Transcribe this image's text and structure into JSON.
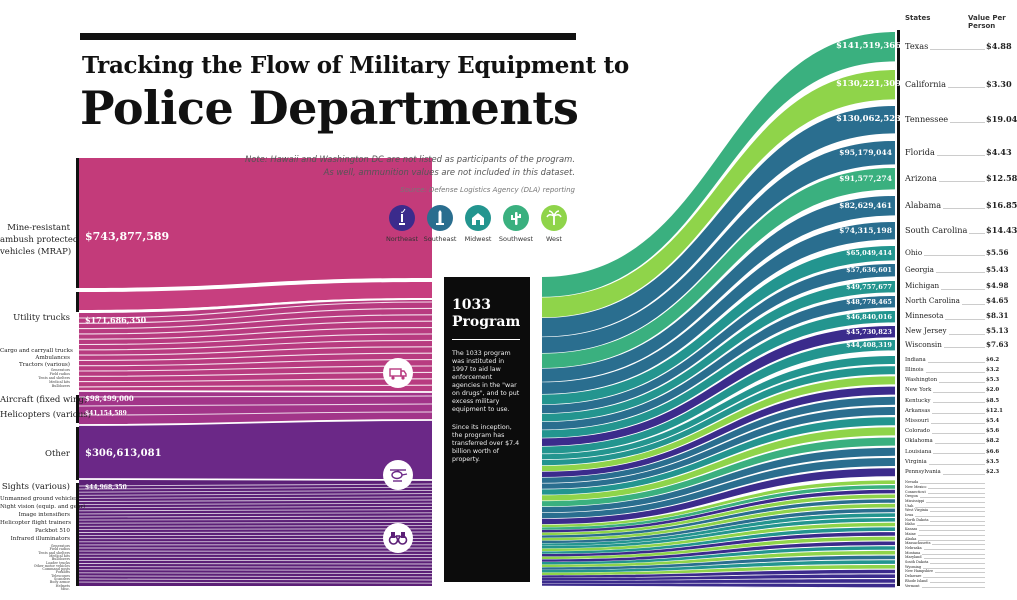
{
  "header": {
    "title_line1": "Tracking the Flow of Military Equipment to",
    "title_line2": "Police Departments",
    "note_line1": "Note: Hawaii and Washington DC are not listed as participants of the program.",
    "note_line2": "As well, ammunition values are not included in this dataset.",
    "source": "Source: Defense Logistics Agency (DLA) reporting"
  },
  "colors": {
    "mrap": "#c33b7a",
    "utility": "#c73f7f",
    "aircraft": "#a23589",
    "other": "#6b2887",
    "sights": "#5c2077",
    "Northeast": "#3b2b8c",
    "Southeast": "#2a6e8f",
    "Midwest": "#23958f",
    "Southwest": "#3ab07f",
    "West": "#8fd44a"
  },
  "legend": [
    {
      "name": "Northeast",
      "icon": "statue-of-liberty-icon"
    },
    {
      "name": "Southeast",
      "icon": "monument-icon"
    },
    {
      "name": "Midwest",
      "icon": "barn-icon"
    },
    {
      "name": "Southwest",
      "icon": "cactus-icon"
    },
    {
      "name": "West",
      "icon": "palm-tree-icon"
    }
  ],
  "program": {
    "title_line1": "1033",
    "title_line2": "Program",
    "para1": "The 1033 program was instituted in 1997 to aid law enforcement agencies in the \"war on drugs\", and to put excess military equipment to use.",
    "para2": "Since its inception, the program has transferred over $7.4 billion worth of property."
  },
  "categories": [
    {
      "label": "Mine-resistant ambush protected vehicles (MRAP)",
      "lines": [
        "Mine-resistant",
        "ambush protected",
        "vehicles (MRAP)"
      ],
      "value": "$743,877,589"
    },
    {
      "label": "Utility trucks",
      "value": "$171,686,350"
    },
    {
      "label": "Cargo and carryall trucks",
      "value": ""
    },
    {
      "label": "Ambulances",
      "value": ""
    },
    {
      "label": "Tractors (various)",
      "value": ""
    },
    {
      "label": "Aircraft (fixed wing)",
      "value": "$98,499,000"
    },
    {
      "label": "Helicopters (various)",
      "value": "$41,154,589"
    },
    {
      "label": "Other",
      "value": "$306,613,081"
    },
    {
      "label": "Sights (various)",
      "value": "$44,968,350"
    },
    {
      "label": "Unmanned ground vehicles",
      "value": ""
    },
    {
      "label": "Night vision (equip. and gear)",
      "value": ""
    },
    {
      "label": "Image intensifiers",
      "value": ""
    },
    {
      "label": "Helicopter flight trainers",
      "value": ""
    },
    {
      "label": "Packbot 510",
      "value": ""
    },
    {
      "label": "Infrared illuminators",
      "value": ""
    }
  ],
  "category_icons": [
    "truck-icon",
    "helicopter-icon",
    "binoculars-icon"
  ],
  "states_header": "States",
  "vpp_header": "Value Per Person",
  "states": [
    {
      "name": "Texas",
      "value": "$141,519,366",
      "vpp": "$4.88",
      "region": "Southwest"
    },
    {
      "name": "California",
      "value": "$130,221,309",
      "vpp": "$3.30",
      "region": "West"
    },
    {
      "name": "Tennessee",
      "value": "$130,062,523",
      "vpp": "$19.04",
      "region": "Southeast"
    },
    {
      "name": "Florida",
      "value": "$95,179,044",
      "vpp": "$4.43",
      "region": "Southeast"
    },
    {
      "name": "Arizona",
      "value": "$91,577,274",
      "vpp": "$12.58",
      "region": "Southwest"
    },
    {
      "name": "Alabama",
      "value": "$82,629,461",
      "vpp": "$16.85",
      "region": "Southeast"
    },
    {
      "name": "South Carolina",
      "value": "$74,315,198",
      "vpp": "$14.43",
      "region": "Southeast"
    },
    {
      "name": "Ohio",
      "value": "$65,049,414",
      "vpp": "$5.56",
      "region": "Midwest"
    },
    {
      "name": "Georgia",
      "value": "$57,636,601",
      "vpp": "$5.43",
      "region": "Southeast"
    },
    {
      "name": "Michigan",
      "value": "$49,757,677",
      "vpp": "$4.98",
      "region": "Midwest"
    },
    {
      "name": "North Carolina",
      "value": "$48,778,465",
      "vpp": "$4.65",
      "region": "Southeast"
    },
    {
      "name": "Minnesota",
      "value": "$46,840,016",
      "vpp": "$8.31",
      "region": "Midwest"
    },
    {
      "name": "New Jersey",
      "value": "$45,730,823",
      "vpp": "$5.13",
      "region": "Northeast"
    },
    {
      "name": "Wisconsin",
      "value": "$44,408,319",
      "vpp": "$7.63",
      "region": "Midwest"
    },
    {
      "name": "Indiana",
      "value": "",
      "vpp": "$6.2",
      "region": "Midwest"
    },
    {
      "name": "Illinois",
      "value": "",
      "vpp": "$3.2",
      "region": "Midwest"
    },
    {
      "name": "Washington",
      "value": "",
      "vpp": "$5.3",
      "region": "West"
    },
    {
      "name": "New York",
      "value": "",
      "vpp": "$2.0",
      "region": "Northeast"
    },
    {
      "name": "Kentucky",
      "value": "",
      "vpp": "$8.5",
      "region": "Southeast"
    },
    {
      "name": "Arkansas",
      "value": "",
      "vpp": "$12.1",
      "region": "Southeast"
    },
    {
      "name": "Missouri",
      "value": "",
      "vpp": "$5.4",
      "region": "Midwest"
    },
    {
      "name": "Colorado",
      "value": "",
      "vpp": "$5.6",
      "region": "West"
    },
    {
      "name": "Oklahoma",
      "value": "",
      "vpp": "$8.2",
      "region": "Southwest"
    },
    {
      "name": "Louisiana",
      "value": "",
      "vpp": "$6.6",
      "region": "Southeast"
    },
    {
      "name": "Virginia",
      "value": "",
      "vpp": "$3.5",
      "region": "Southeast"
    },
    {
      "name": "Pennsylvania",
      "value": "",
      "vpp": "$2.3",
      "region": "Northeast"
    }
  ],
  "small_states": [
    {
      "name": "Nevada",
      "region": "West"
    },
    {
      "name": "New Mexico",
      "region": "Southwest"
    },
    {
      "name": "Connecticut",
      "region": "Northeast"
    },
    {
      "name": "Oregon",
      "region": "West"
    },
    {
      "name": "Mississippi",
      "region": "Southeast"
    },
    {
      "name": "Utah",
      "region": "West"
    },
    {
      "name": "West Virginia",
      "region": "Southeast"
    },
    {
      "name": "Iowa",
      "region": "Midwest"
    },
    {
      "name": "North Dakota",
      "region": "Midwest"
    },
    {
      "name": "Idaho",
      "region": "West"
    },
    {
      "name": "Kansas",
      "region": "Midwest"
    },
    {
      "name": "Maine",
      "region": "Northeast"
    },
    {
      "name": "Alaska",
      "region": "West"
    },
    {
      "name": "Massachusetts",
      "region": "Northeast"
    },
    {
      "name": "Nebraska",
      "region": "Midwest"
    },
    {
      "name": "Montana",
      "region": "West"
    },
    {
      "name": "Maryland",
      "region": "Southeast"
    },
    {
      "name": "South Dakota",
      "region": "Midwest"
    },
    {
      "name": "Wyoming",
      "region": "West"
    },
    {
      "name": "New Hampshire",
      "region": "Northeast"
    },
    {
      "name": "Delaware",
      "region": "Northeast"
    },
    {
      "name": "Rhode Island",
      "region": "Northeast"
    },
    {
      "name": "Vermont",
      "region": "Northeast"
    }
  ],
  "small_categories": [
    "Generators",
    "Field radios",
    "Tents and shelters",
    "Medical kits",
    "Bulldozers",
    "Loader trucks",
    "Other motor vehicles",
    "Command posts",
    "Forklifts",
    "Telescopes",
    "Scanners",
    "Body armor",
    "Helmets",
    "Misc."
  ]
}
